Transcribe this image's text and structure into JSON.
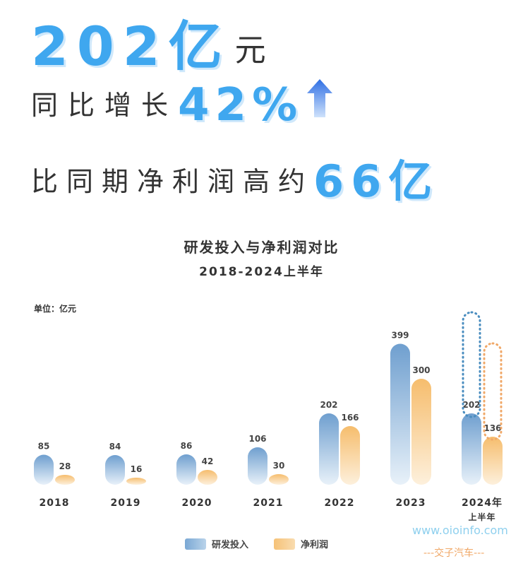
{
  "headline": {
    "amount_value": "202亿",
    "amount_unit": "元",
    "yoy_text": "同比增长",
    "yoy_value": "42%",
    "compare_text": "比同期净利润高约",
    "compare_value": "66亿"
  },
  "colors": {
    "headline_blue": "#3fa7ef",
    "rd_blue": "#6f9fcf",
    "profit_orange": "#f6bd6d"
  },
  "icons": {
    "growth": "up-arrow-icon"
  },
  "chart_data": {
    "type": "bar",
    "title": "研发投入与净利润对比",
    "subtitle": "2018-2024上半年",
    "unit_label": "单位：亿元",
    "categories": [
      "2018",
      "2019",
      "2020",
      "2021",
      "2022",
      "2023",
      "2024年\n上半年"
    ],
    "series": [
      {
        "name": "研发投入",
        "values": [
          85,
          84,
          86,
          106,
          202,
          399,
          202
        ]
      },
      {
        "name": "净利润",
        "values": [
          28,
          16,
          42,
          30,
          166,
          300,
          136
        ]
      }
    ],
    "projection_outline": "dotted outline above the 2024 H1 bars",
    "legend_position": "bottom-center",
    "grid": false
  },
  "watermark": {
    "url": "www.oioinfo.com",
    "name": "---交子汽车---"
  }
}
